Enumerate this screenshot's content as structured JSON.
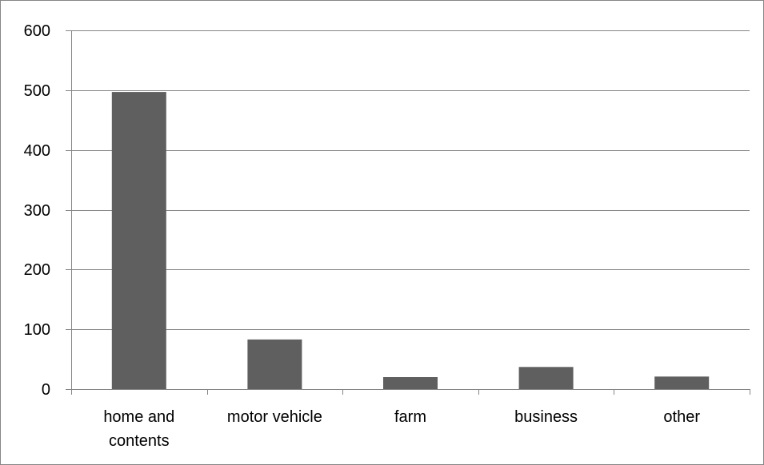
{
  "chart_data": {
    "type": "bar",
    "title": "",
    "xlabel": "",
    "ylabel": "",
    "categories": [
      [
        "home and",
        "contents"
      ],
      [
        "motor vehicle"
      ],
      [
        "farm"
      ],
      [
        "business"
      ],
      [
        "other"
      ]
    ],
    "values": [
      497,
      83,
      20,
      37,
      21
    ],
    "ylim": [
      0,
      600
    ],
    "yticks": [
      "0",
      "100",
      "200",
      "300",
      "400",
      "500",
      "600"
    ],
    "grid": true,
    "legend": "none",
    "colors": {
      "bar": "#5f5f5f",
      "axis": "#868686",
      "grid": "#868686"
    }
  }
}
